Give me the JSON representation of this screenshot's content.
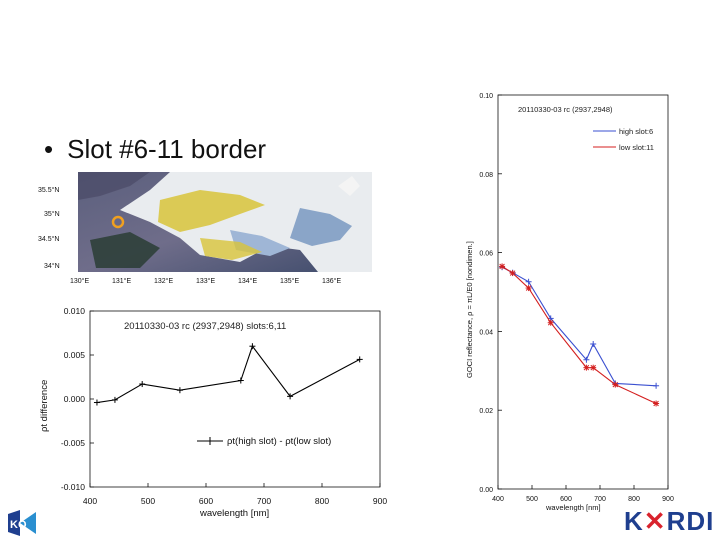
{
  "slide": {
    "bullet_symbol": "•",
    "bullet_text": "Slot #6-11 border"
  },
  "map": {
    "lat_labels": [
      "35.5°N",
      "35°N",
      "34.5°N",
      "34°N"
    ],
    "lon_labels": [
      "130°E",
      "131°E",
      "132°E",
      "133°E",
      "134°E",
      "135°E",
      "136°E"
    ],
    "marker_color": "#f0a020"
  },
  "logos": {
    "left_text": "KO",
    "right_text_a": "K",
    "right_text_b": "RDI"
  },
  "chart_data": [
    {
      "id": "difference",
      "type": "line",
      "title": "20110330-03  rc    (2937,2948) slots:6,11",
      "xlabel": "wavelength [nm]",
      "ylabel": "ρt difference",
      "xlim": [
        400,
        900
      ],
      "ylim": [
        -0.01,
        0.01
      ],
      "xticks": [
        "400",
        "500",
        "600",
        "700",
        "800",
        "900"
      ],
      "yticks": [
        "0.010",
        "0.005",
        "0.000",
        "-0.005",
        "-0.010"
      ],
      "legend": "ρt(high slot) - ρt(low slot)",
      "legend_position": "bottom-right",
      "series": [
        {
          "name": "ρt(high slot) - ρt(low slot)",
          "color": "#000000",
          "marker": "plus",
          "x": [
            412,
            443,
            490,
            555,
            660,
            680,
            745,
            865
          ],
          "y": [
            -0.0004,
            -0.0001,
            0.0017,
            0.001,
            0.0021,
            0.006,
            0.0003,
            0.0045
          ]
        }
      ]
    },
    {
      "id": "reflectance",
      "type": "line",
      "title": "20110330-03  rc    (2937,2948)",
      "xlabel": "wavelength [nm]",
      "ylabel": "GOCI reflectance, ρ = πL/E0 [nondimen.]",
      "xlim": [
        400,
        900
      ],
      "ylim": [
        0,
        0.1
      ],
      "xticks": [
        "400",
        "500",
        "600",
        "700",
        "800",
        "900"
      ],
      "yticks": [
        "0.10",
        "0.08",
        "0.06",
        "0.04",
        "0.02",
        "0.00"
      ],
      "legend_position": "top-right",
      "series": [
        {
          "name": "high slot:6",
          "color": "#3a4fd0",
          "marker": "plus",
          "x": [
            412,
            443,
            490,
            555,
            660,
            680,
            745,
            865
          ],
          "y": [
            0.0563,
            0.0549,
            0.0526,
            0.0433,
            0.0328,
            0.0368,
            0.0268,
            0.0262
          ]
        },
        {
          "name": "low slot:11",
          "color": "#d41f1f",
          "marker": "star",
          "x": [
            412,
            443,
            490,
            555,
            660,
            680,
            745,
            865
          ],
          "y": [
            0.0565,
            0.0548,
            0.051,
            0.0422,
            0.0308,
            0.0308,
            0.0265,
            0.0217
          ]
        }
      ]
    }
  ]
}
